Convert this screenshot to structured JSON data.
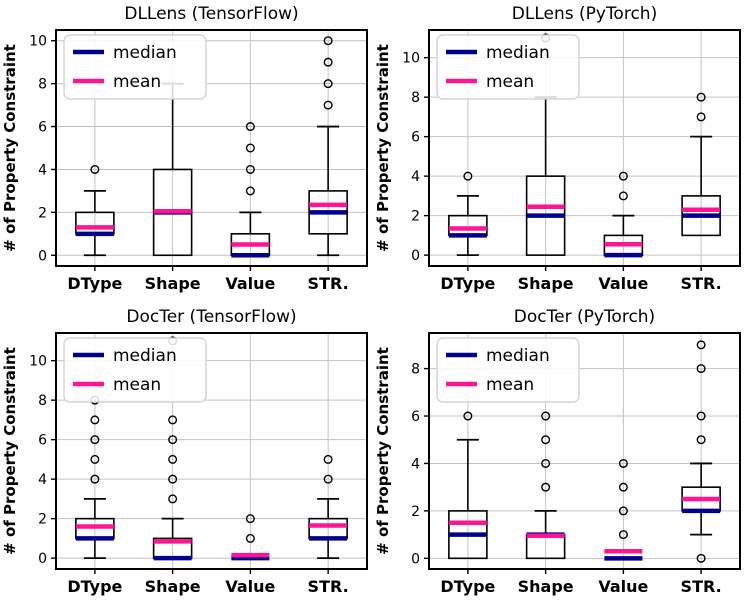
{
  "colors": {
    "median": "#00008B",
    "mean": "#FF1493",
    "grid": "#C2C2C2",
    "box_edge": "#000000",
    "spine": "#000000",
    "outlier": "#000000",
    "legend_border": "#CCCCCC",
    "legend_background": "#FFFFFF",
    "text": "#000000"
  },
  "legend": {
    "items": [
      {
        "label": "median",
        "color_key": "median"
      },
      {
        "label": "mean",
        "color_key": "mean"
      }
    ]
  },
  "chart_data": [
    {
      "type": "box",
      "title": "DLLens (TensorFlow)",
      "ylabel": "# of Property Constraint",
      "categories": [
        "DType",
        "Shape",
        "Value",
        "STR."
      ],
      "yticks": [
        0,
        2,
        4,
        6,
        8,
        10
      ],
      "ylim": [
        -0.5,
        10.5
      ],
      "grid": true,
      "legend_position": "upper left",
      "boxes": [
        {
          "label": "DType",
          "whislo": 0,
          "q1": 1,
          "med": 1,
          "q3": 2,
          "whishi": 3,
          "mean": 1.3,
          "outliers": [
            4
          ]
        },
        {
          "label": "Shape",
          "whislo": 0,
          "q1": 0,
          "med": 2,
          "q3": 4,
          "whishi": 8,
          "mean": 2.05,
          "outliers": []
        },
        {
          "label": "Value",
          "whislo": 0,
          "q1": 0,
          "med": 0,
          "q3": 1,
          "whishi": 2,
          "mean": 0.5,
          "outliers": [
            3,
            4,
            5,
            6
          ]
        },
        {
          "label": "STR.",
          "whislo": 0,
          "q1": 1,
          "med": 2,
          "q3": 3,
          "whishi": 6,
          "mean": 2.35,
          "outliers": [
            7,
            8,
            9,
            10
          ]
        }
      ]
    },
    {
      "type": "box",
      "title": "DLLens (PyTorch)",
      "ylabel": "# of Property Constraint",
      "categories": [
        "DType",
        "Shape",
        "Value",
        "STR."
      ],
      "yticks": [
        0,
        2,
        4,
        6,
        8,
        10
      ],
      "ylim": [
        -0.55,
        11.4
      ],
      "grid": true,
      "legend_position": "upper left",
      "boxes": [
        {
          "label": "DType",
          "whislo": 0,
          "q1": 1,
          "med": 1,
          "q3": 2,
          "whishi": 3,
          "mean": 1.35,
          "outliers": [
            4
          ]
        },
        {
          "label": "Shape",
          "whislo": 0,
          "q1": 0,
          "med": 2,
          "q3": 4,
          "whishi": 8,
          "mean": 2.45,
          "outliers": [
            11
          ]
        },
        {
          "label": "Value",
          "whislo": 0,
          "q1": 0,
          "med": 0,
          "q3": 1,
          "whishi": 2,
          "mean": 0.55,
          "outliers": [
            3,
            4
          ]
        },
        {
          "label": "STR.",
          "whislo": 1,
          "q1": 1,
          "med": 2,
          "q3": 3,
          "whishi": 6,
          "mean": 2.3,
          "outliers": [
            7,
            8
          ]
        }
      ]
    },
    {
      "type": "box",
      "title": "DocTer (TensorFlow)",
      "ylabel": "# of Property Constraint",
      "categories": [
        "DType",
        "Shape",
        "Value",
        "STR."
      ],
      "yticks": [
        0,
        2,
        4,
        6,
        8,
        10
      ],
      "ylim": [
        -0.55,
        11.4
      ],
      "grid": true,
      "legend_position": "upper left",
      "boxes": [
        {
          "label": "DType",
          "whislo": 0,
          "q1": 1,
          "med": 1,
          "q3": 2,
          "whishi": 3,
          "mean": 1.6,
          "outliers": [
            4,
            5,
            6,
            7,
            8
          ]
        },
        {
          "label": "Shape",
          "whislo": 0,
          "q1": 0,
          "med": 0,
          "q3": 1,
          "whishi": 2,
          "mean": 0.85,
          "outliers": [
            3,
            4,
            5,
            6,
            7,
            11
          ]
        },
        {
          "label": "Value",
          "whislo": 0,
          "q1": 0,
          "med": 0,
          "q3": 0,
          "whishi": 0,
          "mean": 0.15,
          "outliers": [
            1,
            2
          ]
        },
        {
          "label": "STR.",
          "whislo": 0,
          "q1": 1,
          "med": 1,
          "q3": 2,
          "whishi": 3,
          "mean": 1.65,
          "outliers": [
            4,
            5
          ]
        }
      ]
    },
    {
      "type": "box",
      "title": "DocTer (PyTorch)",
      "ylabel": "# of Property Constraint",
      "categories": [
        "DType",
        "Shape",
        "Value",
        "STR."
      ],
      "yticks": [
        0,
        2,
        4,
        6,
        8
      ],
      "ylim": [
        -0.45,
        9.5
      ],
      "grid": true,
      "legend_position": "upper left",
      "boxes": [
        {
          "label": "DType",
          "whislo": 0,
          "q1": 0,
          "med": 1,
          "q3": 2,
          "whishi": 5,
          "mean": 1.5,
          "outliers": [
            6
          ]
        },
        {
          "label": "Shape",
          "whislo": 0,
          "q1": 0,
          "med": 1,
          "q3": 1,
          "whishi": 2,
          "mean": 0.95,
          "outliers": [
            3,
            4,
            5,
            6
          ]
        },
        {
          "label": "Value",
          "whislo": 0,
          "q1": 0,
          "med": 0,
          "q3": 0,
          "whishi": 0,
          "mean": 0.3,
          "outliers": [
            1,
            2,
            3,
            4
          ]
        },
        {
          "label": "STR.",
          "whislo": 1,
          "q1": 2,
          "med": 2,
          "q3": 3,
          "whishi": 4,
          "mean": 2.5,
          "outliers": [
            0,
            5,
            6,
            8,
            9
          ]
        }
      ]
    }
  ]
}
